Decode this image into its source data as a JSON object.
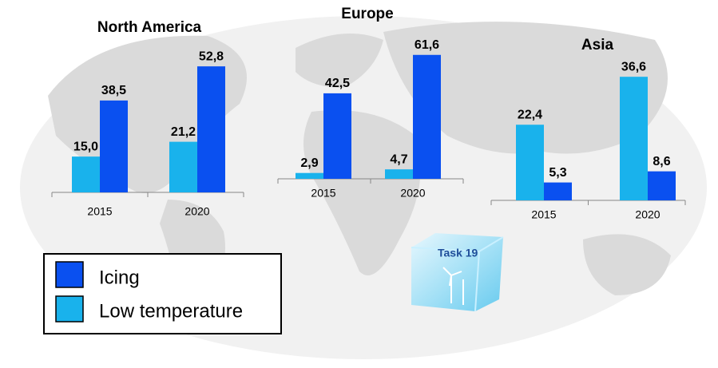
{
  "chart_data": [
    {
      "type": "bar",
      "title": "North America",
      "categories": [
        "2015",
        "2020"
      ],
      "series": [
        {
          "name": "Low temperature",
          "color": "#19b2ec",
          "values": [
            15.0,
            21.2
          ],
          "value_labels": [
            "15,0",
            "21,2"
          ]
        },
        {
          "name": "Icing",
          "color": "#0a50f0",
          "values": [
            38.5,
            52.8
          ],
          "value_labels": [
            "38,5",
            "52,8"
          ]
        }
      ]
    },
    {
      "type": "bar",
      "title": "Europe",
      "categories": [
        "2015",
        "2020"
      ],
      "series": [
        {
          "name": "Low temperature",
          "color": "#19b2ec",
          "values": [
            2.9,
            4.7
          ],
          "value_labels": [
            "2,9",
            "4,7"
          ]
        },
        {
          "name": "Icing",
          "color": "#0a50f0",
          "values": [
            42.5,
            61.6
          ],
          "value_labels": [
            "42,5",
            "61,6"
          ]
        }
      ]
    },
    {
      "type": "bar",
      "title": "Asia",
      "categories": [
        "2015",
        "2020"
      ],
      "series": [
        {
          "name": "Low temperature",
          "color": "#19b2ec",
          "values": [
            22.4,
            36.6
          ],
          "value_labels": [
            "22,4",
            "36,6"
          ]
        },
        {
          "name": "Icing",
          "color": "#0a50f0",
          "values": [
            5.3,
            8.6
          ],
          "value_labels": [
            "5,3",
            "8,6"
          ]
        }
      ]
    }
  ],
  "badge_text": "Task 19"
}
